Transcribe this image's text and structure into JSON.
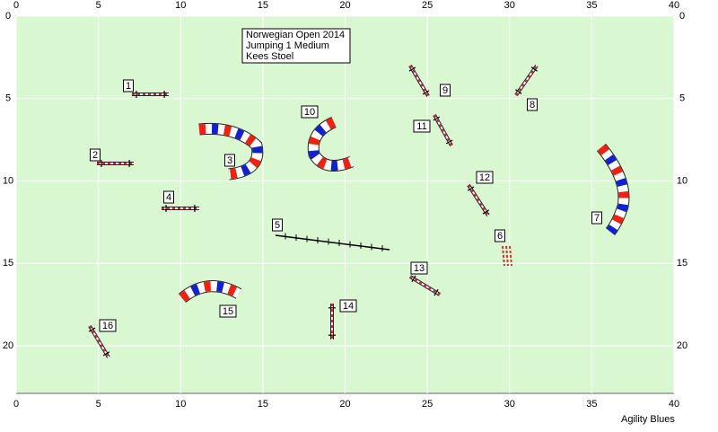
{
  "course": {
    "title_lines": [
      "Norwegian Open 2014",
      "Jumping 1 Medium",
      "Kees Stoel"
    ],
    "x_ticks": [
      0,
      5,
      10,
      15,
      20,
      25,
      30,
      35,
      40
    ],
    "y_ticks": [
      0,
      5,
      10,
      15,
      20
    ],
    "obstacles": [
      "1",
      "2",
      "3",
      "4",
      "5",
      "6",
      "7",
      "8",
      "9",
      "10",
      "11",
      "12",
      "13",
      "14",
      "15",
      "16"
    ],
    "footer": "Agility Blues"
  }
}
